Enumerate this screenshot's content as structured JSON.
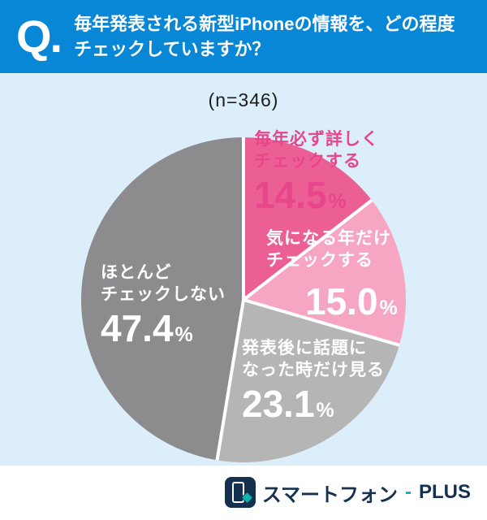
{
  "header": {
    "q_mark": "Q.",
    "title_lines": [
      "毎年発表される新型iPhoneの情報を、どの程度",
      "チェックしていますか？"
    ]
  },
  "sample_size": "(n=346)",
  "chart_data": {
    "type": "pie",
    "title": "毎年発表される新型iPhoneの情報を、どの程度チェックしていますか？",
    "sample_n": 346,
    "start_angle_deg": 0,
    "direction": "clockwise",
    "legend_position": "on-slice",
    "separator_color": "#ffffff",
    "slices": [
      {
        "label": "毎年必ず詳しくチェックする",
        "label_lines": [
          "毎年必ず詳しく",
          "チェックする"
        ],
        "value": 14.5,
        "pct": "14.5",
        "pct_sign": "%",
        "color": "#ec5f95",
        "text_color": "#e8468a"
      },
      {
        "label": "気になる年だけチェックする",
        "label_lines": [
          "気になる年だけ",
          "チェックする"
        ],
        "value": 15.0,
        "pct": "15.0",
        "pct_sign": "%",
        "color": "#f6a6c3",
        "text_color": "#ffffff"
      },
      {
        "label": "発表後に話題になった時だけ見る",
        "label_lines": [
          "発表後に話題に",
          "なった時だけ見る"
        ],
        "value": 23.1,
        "pct": "23.1",
        "pct_sign": "%",
        "color": "#b5b5b6",
        "text_color": "#ffffff"
      },
      {
        "label": "ほとんどチェックしない",
        "label_lines": [
          "ほとんど",
          "チェックしない"
        ],
        "value": 47.4,
        "pct": "47.4",
        "pct_sign": "%",
        "color": "#8c8c8e",
        "text_color": "#ffffff"
      }
    ]
  },
  "footer": {
    "brand_left": "スマートフォン",
    "separator": "-",
    "brand_right": "PLUS",
    "accent_color": "#0fb4ab",
    "navy_color": "#16314f"
  },
  "colors": {
    "header_bg": "#0887d7",
    "body_bg": "#dbeefa",
    "footer_bg": "#ffffff"
  }
}
